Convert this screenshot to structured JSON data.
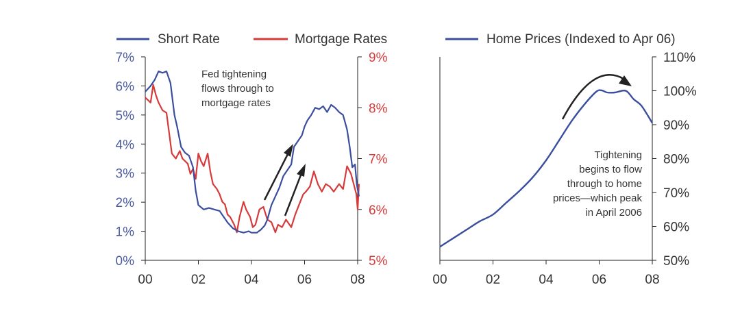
{
  "colors": {
    "short_rate": "#3b4e9e",
    "mortgage": "#d63a3a",
    "home_prices": "#3b4e9e",
    "left_axis_text": "#4a5a9c",
    "right_axis_text": "#d63a3a",
    "home_axis_text": "#333333",
    "arrow": "#222222"
  },
  "chart_data": [
    {
      "type": "line",
      "legend": [
        "Short Rate",
        "Mortgage Rates"
      ],
      "annotation": [
        "Fed tightening",
        "flows through to",
        "mortgage rates"
      ],
      "x_ticks": [
        "00",
        "02",
        "04",
        "06",
        "08"
      ],
      "y_left": {
        "ticks": [
          "0%",
          "1%",
          "2%",
          "3%",
          "4%",
          "5%",
          "6%",
          "7%"
        ],
        "range": [
          0,
          7
        ]
      },
      "y_right": {
        "ticks": [
          "5%",
          "6%",
          "7%",
          "8%",
          "9%"
        ],
        "range": [
          5,
          9
        ]
      },
      "xlim": [
        2000.0,
        2008.0
      ],
      "series": [
        {
          "name": "Short Rate",
          "axis": "left",
          "points": [
            [
              2000.0,
              5.8
            ],
            [
              2000.2,
              6.0
            ],
            [
              2000.35,
              6.2
            ],
            [
              2000.5,
              6.5
            ],
            [
              2000.65,
              6.45
            ],
            [
              2000.8,
              6.5
            ],
            [
              2000.95,
              6.1
            ],
            [
              2001.1,
              5.0
            ],
            [
              2001.2,
              4.6
            ],
            [
              2001.35,
              3.9
            ],
            [
              2001.5,
              3.7
            ],
            [
              2001.65,
              3.6
            ],
            [
              2001.8,
              3.2
            ],
            [
              2001.9,
              2.4
            ],
            [
              2002.0,
              1.9
            ],
            [
              2002.2,
              1.75
            ],
            [
              2002.4,
              1.8
            ],
            [
              2002.6,
              1.75
            ],
            [
              2002.8,
              1.7
            ],
            [
              2002.95,
              1.5
            ],
            [
              2003.1,
              1.3
            ],
            [
              2003.3,
              1.1
            ],
            [
              2003.5,
              1.0
            ],
            [
              2003.7,
              0.95
            ],
            [
              2003.9,
              1.0
            ],
            [
              2004.0,
              0.95
            ],
            [
              2004.2,
              0.95
            ],
            [
              2004.35,
              1.05
            ],
            [
              2004.5,
              1.2
            ],
            [
              2004.6,
              1.4
            ],
            [
              2004.75,
              1.9
            ],
            [
              2004.9,
              2.2
            ],
            [
              2005.05,
              2.5
            ],
            [
              2005.2,
              2.9
            ],
            [
              2005.35,
              3.1
            ],
            [
              2005.5,
              3.3
            ],
            [
              2005.6,
              3.9
            ],
            [
              2005.75,
              4.1
            ],
            [
              2005.9,
              4.3
            ],
            [
              2006.0,
              4.6
            ],
            [
              2006.1,
              4.8
            ],
            [
              2006.25,
              5.0
            ],
            [
              2006.4,
              5.25
            ],
            [
              2006.55,
              5.2
            ],
            [
              2006.7,
              5.3
            ],
            [
              2006.85,
              5.1
            ],
            [
              2007.0,
              5.35
            ],
            [
              2007.15,
              5.25
            ],
            [
              2007.3,
              5.1
            ],
            [
              2007.45,
              5.0
            ],
            [
              2007.6,
              4.5
            ],
            [
              2007.7,
              3.9
            ],
            [
              2007.8,
              3.2
            ],
            [
              2007.9,
              3.3
            ],
            [
              2007.97,
              2.6
            ],
            [
              2008.05,
              2.2
            ]
          ]
        },
        {
          "name": "Mortgage Rates",
          "axis": "right",
          "points": [
            [
              2000.0,
              8.2
            ],
            [
              2000.1,
              8.15
            ],
            [
              2000.2,
              8.1
            ],
            [
              2000.3,
              8.45
            ],
            [
              2000.4,
              8.25
            ],
            [
              2000.5,
              8.1
            ],
            [
              2000.65,
              7.95
            ],
            [
              2000.8,
              7.9
            ],
            [
              2000.9,
              7.5
            ],
            [
              2001.0,
              7.1
            ],
            [
              2001.15,
              7.0
            ],
            [
              2001.3,
              7.15
            ],
            [
              2001.4,
              7.0
            ],
            [
              2001.5,
              6.95
            ],
            [
              2001.6,
              6.9
            ],
            [
              2001.7,
              6.7
            ],
            [
              2001.8,
              6.8
            ],
            [
              2001.9,
              6.6
            ],
            [
              2002.0,
              7.1
            ],
            [
              2002.1,
              6.95
            ],
            [
              2002.2,
              6.85
            ],
            [
              2002.35,
              7.1
            ],
            [
              2002.45,
              6.75
            ],
            [
              2002.55,
              6.5
            ],
            [
              2002.7,
              6.4
            ],
            [
              2002.8,
              6.3
            ],
            [
              2002.9,
              6.15
            ],
            [
              2003.0,
              6.1
            ],
            [
              2003.1,
              5.9
            ],
            [
              2003.2,
              5.85
            ],
            [
              2003.35,
              5.7
            ],
            [
              2003.45,
              5.55
            ],
            [
              2003.55,
              5.85
            ],
            [
              2003.7,
              6.15
            ],
            [
              2003.8,
              6.0
            ],
            [
              2003.95,
              5.85
            ],
            [
              2004.05,
              5.65
            ],
            [
              2004.15,
              5.7
            ],
            [
              2004.3,
              6.0
            ],
            [
              2004.45,
              6.05
            ],
            [
              2004.6,
              5.8
            ],
            [
              2004.75,
              5.75
            ],
            [
              2004.9,
              5.55
            ],
            [
              2005.0,
              5.7
            ],
            [
              2005.15,
              5.65
            ],
            [
              2005.3,
              5.8
            ],
            [
              2005.5,
              5.65
            ],
            [
              2005.65,
              5.9
            ],
            [
              2005.8,
              6.1
            ],
            [
              2005.95,
              6.3
            ],
            [
              2006.05,
              6.35
            ],
            [
              2006.2,
              6.45
            ],
            [
              2006.35,
              6.75
            ],
            [
              2006.5,
              6.5
            ],
            [
              2006.65,
              6.35
            ],
            [
              2006.8,
              6.5
            ],
            [
              2006.95,
              6.45
            ],
            [
              2007.1,
              6.35
            ],
            [
              2007.3,
              6.5
            ],
            [
              2007.45,
              6.4
            ],
            [
              2007.6,
              6.85
            ],
            [
              2007.75,
              6.7
            ],
            [
              2007.85,
              6.5
            ],
            [
              2007.95,
              6.3
            ],
            [
              2008.0,
              6.0
            ],
            [
              2008.05,
              6.5
            ]
          ]
        }
      ]
    },
    {
      "type": "line",
      "legend": [
        "Home Prices (Indexed to Apr 06)"
      ],
      "annotation": [
        "Tightening",
        "begins to flow",
        "through to home",
        "prices—which peak",
        "in April 2006"
      ],
      "x_ticks": [
        "00",
        "02",
        "04",
        "06",
        "08"
      ],
      "y_right": {
        "ticks": [
          "50%",
          "60%",
          "70%",
          "80%",
          "90%",
          "100%",
          "110%"
        ],
        "range": [
          50,
          110
        ]
      },
      "xlim": [
        2000.0,
        2008.0
      ],
      "series": [
        {
          "name": "Home Prices (Indexed to Apr 06)",
          "axis": "right",
          "points": [
            [
              2000.0,
              54
            ],
            [
              2000.5,
              56.5
            ],
            [
              2001.0,
              59
            ],
            [
              2001.5,
              61.5
            ],
            [
              2002.0,
              63.5
            ],
            [
              2002.5,
              67
            ],
            [
              2003.0,
              70.5
            ],
            [
              2003.5,
              74.5
            ],
            [
              2004.0,
              79.5
            ],
            [
              2004.5,
              85.5
            ],
            [
              2005.0,
              91.5
            ],
            [
              2005.5,
              96.5
            ],
            [
              2005.9,
              99.8
            ],
            [
              2006.1,
              100.1
            ],
            [
              2006.3,
              99.5
            ],
            [
              2006.6,
              99.5
            ],
            [
              2007.0,
              100
            ],
            [
              2007.3,
              97.5
            ],
            [
              2007.6,
              95.5
            ],
            [
              2008.0,
              90.5
            ]
          ]
        }
      ]
    }
  ]
}
